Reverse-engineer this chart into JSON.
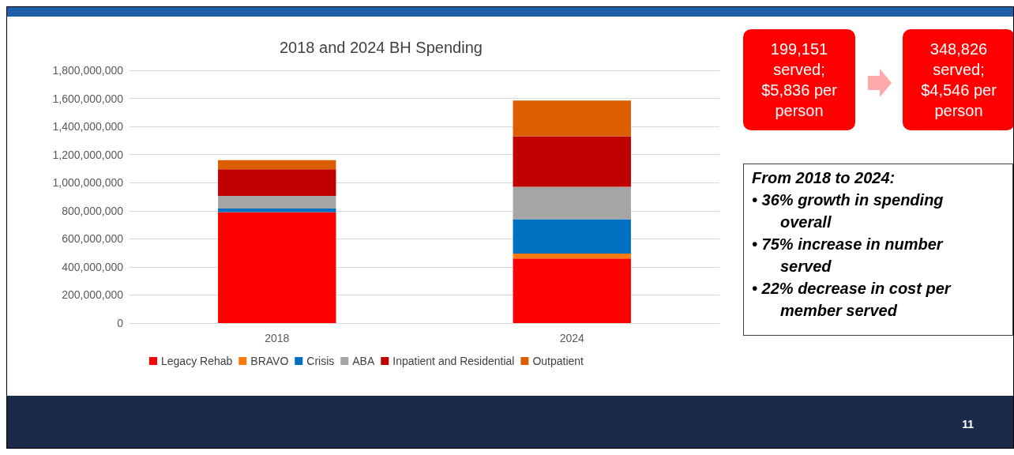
{
  "chart_data": {
    "type": "bar",
    "title": "2018 and 2024 BH Spending",
    "categories": [
      "2018",
      "2024"
    ],
    "stacked": true,
    "grid": "y",
    "legend": "bottom",
    "series": [
      {
        "name": "Legacy Rehab",
        "color": "#ff0000",
        "values": [
          790000000,
          460000000
        ]
      },
      {
        "name": "BRAVO",
        "color": "#fb7a0c",
        "values": [
          0,
          35000000
        ]
      },
      {
        "name": "Crisis",
        "color": "#0070c0",
        "values": [
          25000000,
          245000000
        ]
      },
      {
        "name": "ABA",
        "color": "#a5a5a5",
        "values": [
          90000000,
          230000000
        ]
      },
      {
        "name": "Inpatient and Residential",
        "color": "#c00000",
        "values": [
          190000000,
          360000000
        ]
      },
      {
        "name": "Outpatient",
        "color": "#dd5e00",
        "values": [
          65000000,
          255000000
        ]
      }
    ],
    "ylim": [
      0,
      1800000000
    ],
    "yticks": [
      0,
      {
        "value": 200000000,
        "label": "200,000,000"
      },
      {
        "value": 400000000,
        "label": "400,000,000"
      },
      {
        "value": 600000000,
        "label": "600,000,000"
      },
      {
        "value": 800000000,
        "label": "800,000,000"
      },
      {
        "value": 1000000000,
        "label": "1,000,000,000"
      },
      {
        "value": 1200000000,
        "label": "1,200,000,000"
      },
      {
        "value": 1400000000,
        "label": "1,400,000,000"
      },
      {
        "value": 1600000000,
        "label": "1,600,000,000"
      },
      {
        "value": 1800000000,
        "label": "1,800,000,000"
      }
    ],
    "annotations": [
      "199,151 served; $5,836 per person",
      "348,826 served; $4,546 per person",
      "From 2018 to 2024:",
      "• 36% growth in spending overall",
      "• 75% increase in number served",
      "• 22% decrease in cost per member served",
      "11"
    ]
  }
}
